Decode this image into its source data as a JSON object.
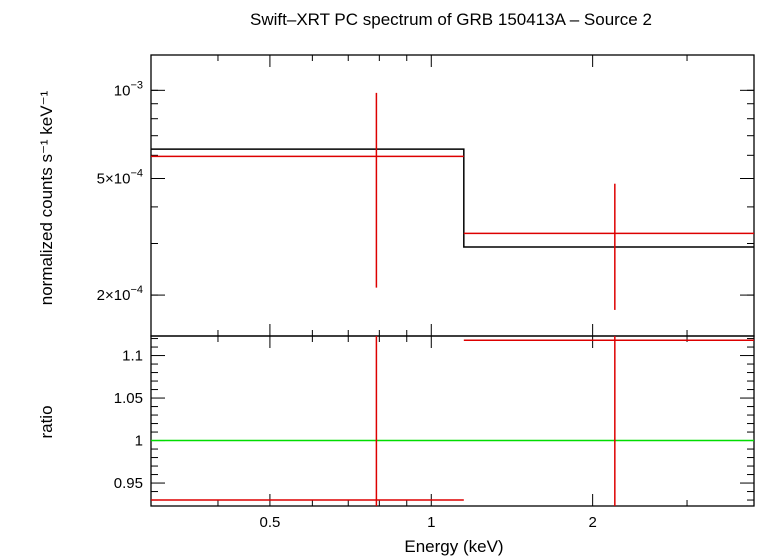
{
  "chart_data": {
    "type": "scatter",
    "title": "Swift–XRT PC spectrum of GRB 150413A – Source 2",
    "xlabel": "Energy (keV)",
    "x_scale": "log",
    "xlim": [
      0.3,
      4.0
    ],
    "x_ticks": [
      {
        "value": 0.5,
        "label": "0.5"
      },
      {
        "value": 1,
        "label": "1"
      },
      {
        "value": 2,
        "label": "2"
      }
    ],
    "colors": {
      "data": "#dd0000",
      "model": "#000000",
      "unity": "#00dd00",
      "frame": "#000000"
    },
    "panels": [
      {
        "name": "spectrum",
        "ylabel": "normalized counts s⁻¹ keV⁻¹",
        "y_scale": "log",
        "ylim": [
          0.000145,
          0.00132
        ],
        "y_ticks": [
          {
            "value": 0.001,
            "mant": "10",
            "exp": "−3"
          },
          {
            "value": 0.0005,
            "mant": "5×10",
            "exp": "−4"
          },
          {
            "value": 0.0002,
            "mant": "2×10",
            "exp": "−4"
          }
        ],
        "data": [
          {
            "x_low": 0.3,
            "x_high": 1.15,
            "x": 0.79,
            "y": 0.000595,
            "y_low": 0.000212,
            "y_high": 0.00098
          },
          {
            "x_low": 1.15,
            "x_high": 4.0,
            "x": 2.2,
            "y": 0.000325,
            "y_low": 0.000178,
            "y_high": 0.00048
          }
        ],
        "model": [
          {
            "x_low": 0.3,
            "x_high": 1.15,
            "y": 0.00063
          },
          {
            "x_low": 1.15,
            "x_high": 4.0,
            "y": 0.000292
          }
        ]
      },
      {
        "name": "ratio",
        "ylabel": "ratio",
        "y_scale": "linear",
        "ylim": [
          0.923,
          1.123
        ],
        "y_ticks": [
          {
            "value": 0.95,
            "label": "0.95"
          },
          {
            "value": 1.0,
            "label": "1"
          },
          {
            "value": 1.05,
            "label": "1.05"
          },
          {
            "value": 1.1,
            "label": "1.1"
          }
        ],
        "reference": 1.0,
        "data": [
          {
            "x_low": 0.3,
            "x_high": 1.15,
            "x": 0.79,
            "y": 0.93
          },
          {
            "x_low": 1.15,
            "x_high": 4.0,
            "x": 2.2,
            "y": 1.118
          }
        ]
      }
    ]
  }
}
